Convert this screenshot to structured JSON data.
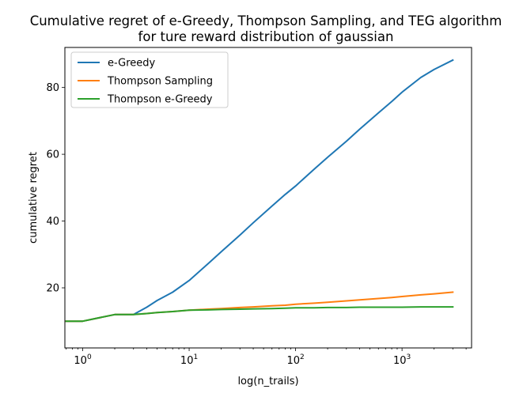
{
  "chart_data": {
    "type": "line",
    "title": "Cumulative regret of e-Greedy, Thompson Sampling, and TEG algorithm",
    "subtitle": "for ture reward distribution of gaussian",
    "xlabel": "log(n_trails)",
    "ylabel": "cumulative regret",
    "xscale": "log",
    "xlim": [
      0.68,
      4500
    ],
    "ylim": [
      2,
      92
    ],
    "x_ticks": [
      {
        "value": 1,
        "base": "10",
        "exp": "0"
      },
      {
        "value": 10,
        "base": "10",
        "exp": "1"
      },
      {
        "value": 100,
        "base": "10",
        "exp": "2"
      },
      {
        "value": 1000,
        "base": "10",
        "exp": "3"
      }
    ],
    "y_ticks": [
      20,
      40,
      60,
      80
    ],
    "grid": false,
    "legend_position": "top-left",
    "x": [
      0.7,
      1,
      2,
      3,
      4,
      5,
      7,
      10,
      15,
      20,
      30,
      40,
      60,
      80,
      100,
      150,
      200,
      300,
      400,
      600,
      800,
      1000,
      1500,
      2000,
      3000
    ],
    "series": [
      {
        "name": "e-Greedy",
        "color": "#1f77b4",
        "values": [
          10,
          10,
          12,
          12,
          14.2,
          16.2,
          18.7,
          22.2,
          27.2,
          30.8,
          35.8,
          39.5,
          44.5,
          48.0,
          50.5,
          55.6,
          59.1,
          63.9,
          67.5,
          72.4,
          75.8,
          78.6,
          83.0,
          85.4,
          88.2
        ]
      },
      {
        "name": "Thompson Sampling",
        "color": "#ff7f0e",
        "values": [
          10,
          10,
          12,
          12,
          12.3,
          12.6,
          12.9,
          13.3,
          13.6,
          13.8,
          14.1,
          14.3,
          14.6,
          14.8,
          15.1,
          15.4,
          15.7,
          16.1,
          16.4,
          16.8,
          17.1,
          17.4,
          17.9,
          18.2,
          18.7
        ]
      },
      {
        "name": "Thompson e-Greedy",
        "color": "#2ca02c",
        "values": [
          10,
          10,
          12,
          12,
          12.3,
          12.6,
          12.9,
          13.3,
          13.4,
          13.5,
          13.6,
          13.7,
          13.8,
          13.9,
          14.0,
          14.0,
          14.1,
          14.1,
          14.2,
          14.2,
          14.2,
          14.2,
          14.3,
          14.3,
          14.3
        ]
      }
    ]
  }
}
